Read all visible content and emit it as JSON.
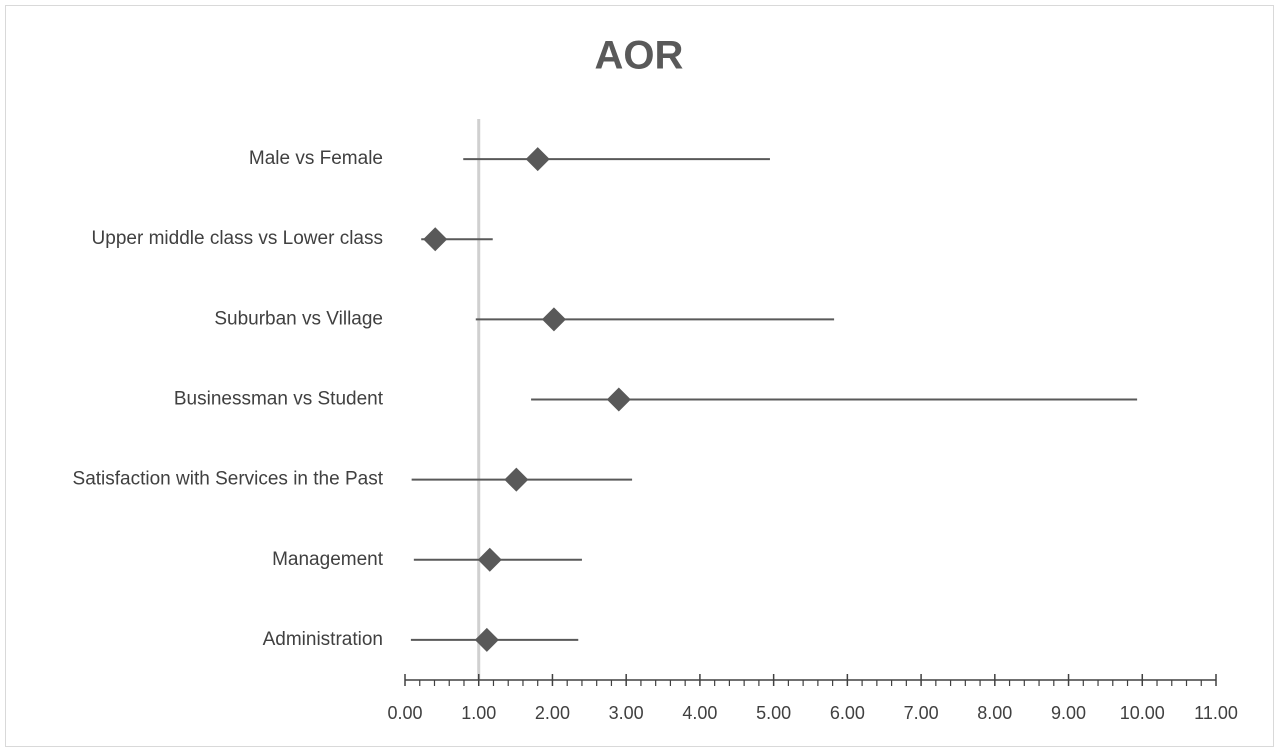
{
  "chart_data": {
    "type": "forest",
    "title": "AOR",
    "categories": [
      "Male vs Female",
      "Upper middle class vs Lower class",
      "Suburban vs Village",
      "Businessman vs Student",
      "Satisfaction with Services in the Past",
      "Management",
      "Administration"
    ],
    "values": [
      1.8,
      0.41,
      2.02,
      2.9,
      1.51,
      1.15,
      1.11
    ],
    "lower": [
      0.79,
      0.22,
      0.96,
      1.71,
      0.09,
      0.12,
      0.08
    ],
    "upper": [
      4.95,
      1.19,
      5.82,
      9.93,
      3.08,
      2.4,
      2.35
    ],
    "color": "#595959",
    "reference_line": 1,
    "xlim": [
      0,
      11
    ],
    "xticks": [
      {
        "value": 0,
        "label": "0.00"
      },
      {
        "value": 1,
        "label": "1.00"
      },
      {
        "value": 2,
        "label": "2.00"
      },
      {
        "value": 3,
        "label": "3.00"
      },
      {
        "value": 4,
        "label": "4.00"
      },
      {
        "value": 5,
        "label": "5.00"
      },
      {
        "value": 6,
        "label": "6.00"
      },
      {
        "value": 7,
        "label": "7.00"
      },
      {
        "value": 8,
        "label": "8.00"
      },
      {
        "value": 9,
        "label": "9.00"
      },
      {
        "value": 10,
        "label": "10.00"
      },
      {
        "value": 11,
        "label": "11.00"
      }
    ]
  }
}
